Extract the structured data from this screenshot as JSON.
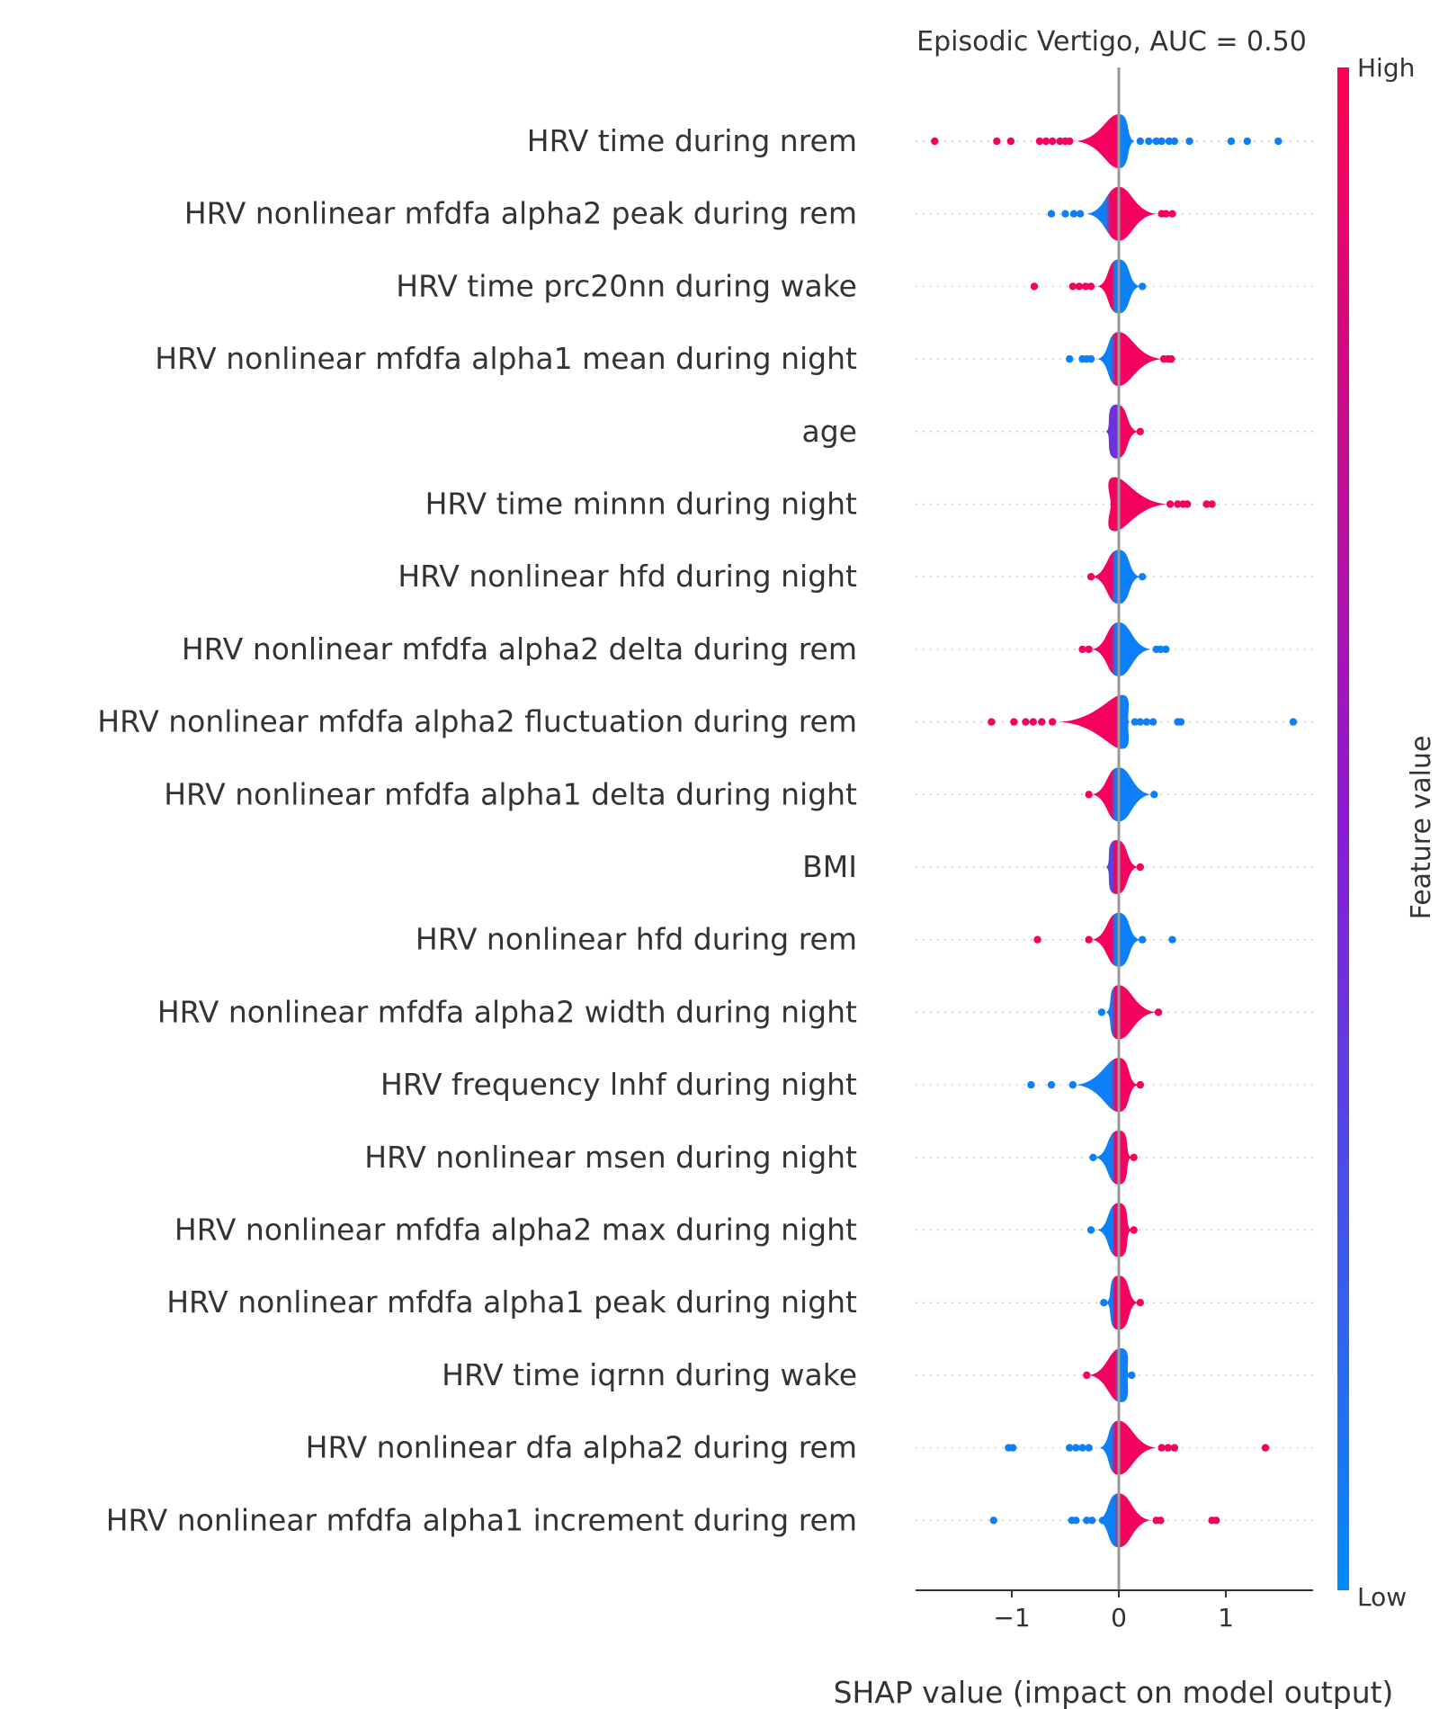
{
  "chart_data": {
    "type": "scatter",
    "subtype": "shap-beeswarm",
    "title": "Episodic Vertigo, AUC =  0.50",
    "xlabel": "SHAP value (impact on model output)",
    "ylabel": "",
    "xlim": [
      -1.88,
      1.82
    ],
    "x_ticks": [
      -1,
      0,
      1
    ],
    "x_tick_labels": [
      "−1",
      "0",
      "1"
    ],
    "grid": false,
    "colorbar": {
      "label": "Feature value",
      "high_label": "High",
      "low_label": "Low",
      "low_color": "#008bfb",
      "mid_color": "#8a1ad3",
      "high_color": "#ff0052"
    },
    "colors": {
      "low": "#008bfb",
      "high": "#ff0052",
      "zero_line": "#999999",
      "row_guide": "#cccccc",
      "text": "#333333"
    },
    "features": [
      {
        "name": "HRV time during nrem",
        "core": {
          "left": -0.4,
          "right": 0.15,
          "peak": 0.0,
          "split": 0.0,
          "left_value": 0.95,
          "right_value": 0.05
        },
        "points": [
          [
            -1.72,
            0.95
          ],
          [
            -1.14,
            0.95
          ],
          [
            -1.01,
            0.95
          ],
          [
            -0.74,
            0.95
          ],
          [
            -0.68,
            0.95
          ],
          [
            -0.62,
            0.95
          ],
          [
            -0.55,
            0.95
          ],
          [
            -0.5,
            0.95
          ],
          [
            -0.46,
            0.95
          ],
          [
            0.2,
            0.05
          ],
          [
            0.28,
            0.05
          ],
          [
            0.35,
            0.05
          ],
          [
            0.4,
            0.05
          ],
          [
            0.47,
            0.05
          ],
          [
            0.52,
            0.05
          ],
          [
            0.66,
            0.05
          ],
          [
            1.05,
            0.05
          ],
          [
            1.2,
            0.05
          ],
          [
            1.49,
            0.05
          ]
        ]
      },
      {
        "name": "HRV nonlinear mfdfa alpha2 peak during rem",
        "core": {
          "left": -0.3,
          "right": 0.35,
          "peak": 0.0,
          "split": -0.1,
          "left_value": 0.05,
          "right_value": 0.95
        },
        "points": [
          [
            -0.63,
            0.05
          ],
          [
            -0.5,
            0.05
          ],
          [
            -0.42,
            0.05
          ],
          [
            -0.36,
            0.05
          ],
          [
            0.4,
            0.95
          ],
          [
            0.44,
            0.95
          ],
          [
            0.5,
            0.95
          ]
        ]
      },
      {
        "name": "HRV time prc20nn during wake",
        "core": {
          "left": -0.2,
          "right": 0.2,
          "peak": 0.0,
          "split": -0.05,
          "left_value": 0.95,
          "right_value": 0.05
        },
        "points": [
          [
            -0.79,
            0.95
          ],
          [
            -0.43,
            0.95
          ],
          [
            -0.37,
            0.95
          ],
          [
            -0.31,
            0.95
          ],
          [
            -0.26,
            0.95
          ],
          [
            0.22,
            0.05
          ]
        ]
      },
      {
        "name": "HRV nonlinear mfdfa alpha1 mean during night",
        "core": {
          "left": -0.2,
          "right": 0.4,
          "peak": 0.0,
          "split": -0.05,
          "left_value": 0.05,
          "right_value": 0.95
        },
        "points": [
          [
            -0.46,
            0.05
          ],
          [
            -0.34,
            0.05
          ],
          [
            -0.3,
            0.05
          ],
          [
            -0.26,
            0.05
          ],
          [
            0.42,
            0.95
          ],
          [
            0.46,
            0.95
          ],
          [
            0.49,
            0.95
          ]
        ]
      },
      {
        "name": "age",
        "core": {
          "left": -0.12,
          "right": 0.18,
          "peak": -0.02,
          "split": 0.0,
          "left_value": 0.4,
          "right_value": 0.95
        },
        "points": [
          [
            0.2,
            0.95
          ]
        ]
      },
      {
        "name": "HRV time minnn during night",
        "core": {
          "left": -0.08,
          "right": 0.45,
          "peak": -0.04,
          "split": 0.0,
          "left_value": 0.95,
          "right_value": 0.95
        },
        "points": [
          [
            0.48,
            0.95
          ],
          [
            0.55,
            0.95
          ],
          [
            0.6,
            0.95
          ],
          [
            0.64,
            0.95
          ],
          [
            0.82,
            0.95
          ],
          [
            0.87,
            0.95
          ]
        ]
      },
      {
        "name": "HRV nonlinear hfd during night",
        "core": {
          "left": -0.25,
          "right": 0.2,
          "peak": 0.0,
          "split": -0.05,
          "left_value": 0.95,
          "right_value": 0.05
        },
        "points": [
          [
            -0.26,
            0.95
          ],
          [
            0.22,
            0.05
          ]
        ]
      },
      {
        "name": "HRV nonlinear mfdfa alpha2 delta during rem",
        "core": {
          "left": -0.25,
          "right": 0.3,
          "peak": 0.0,
          "split": -0.05,
          "left_value": 0.95,
          "right_value": 0.05
        },
        "points": [
          [
            -0.34,
            0.95
          ],
          [
            -0.28,
            0.95
          ],
          [
            0.35,
            0.05
          ],
          [
            0.39,
            0.05
          ],
          [
            0.44,
            0.05
          ]
        ]
      },
      {
        "name": "HRV nonlinear mfdfa alpha2 fluctuation during rem",
        "core": {
          "left": -0.55,
          "right": 0.1,
          "peak": 0.03,
          "split": 0.0,
          "left_value": 0.95,
          "right_value": 0.05
        },
        "points": [
          [
            -1.19,
            0.95
          ],
          [
            -0.98,
            0.95
          ],
          [
            -0.87,
            0.95
          ],
          [
            -0.8,
            0.95
          ],
          [
            -0.72,
            0.95
          ],
          [
            -0.62,
            0.95
          ],
          [
            0.15,
            0.05
          ],
          [
            0.2,
            0.05
          ],
          [
            0.26,
            0.05
          ],
          [
            0.32,
            0.05
          ],
          [
            0.55,
            0.05
          ],
          [
            0.58,
            0.05
          ],
          [
            1.63,
            0.05
          ]
        ]
      },
      {
        "name": "HRV nonlinear mfdfa alpha1 delta during night",
        "core": {
          "left": -0.25,
          "right": 0.3,
          "peak": 0.0,
          "split": -0.05,
          "left_value": 0.95,
          "right_value": 0.05
        },
        "points": [
          [
            -0.28,
            0.95
          ],
          [
            0.33,
            0.05
          ]
        ]
      },
      {
        "name": "BMI",
        "core": {
          "left": -0.12,
          "right": 0.18,
          "peak": -0.02,
          "split": -0.05,
          "left_value": 0.3,
          "right_value": 0.95
        },
        "points": [
          [
            0.2,
            0.95
          ]
        ]
      },
      {
        "name": "HRV nonlinear hfd during rem",
        "core": {
          "left": -0.25,
          "right": 0.2,
          "peak": 0.0,
          "split": -0.05,
          "left_value": 0.95,
          "right_value": 0.05
        },
        "points": [
          [
            -0.76,
            0.95
          ],
          [
            -0.28,
            0.95
          ],
          [
            0.22,
            0.05
          ],
          [
            0.5,
            0.05
          ]
        ]
      },
      {
        "name": "HRV nonlinear mfdfa alpha2 width during night",
        "core": {
          "left": -0.12,
          "right": 0.35,
          "peak": 0.0,
          "split": -0.05,
          "left_value": 0.05,
          "right_value": 0.95
        },
        "points": [
          [
            -0.16,
            0.05
          ],
          [
            0.37,
            0.95
          ]
        ]
      },
      {
        "name": "HRV frequency lnhf during night",
        "core": {
          "left": -0.4,
          "right": 0.18,
          "peak": 0.0,
          "split": -0.05,
          "left_value": 0.05,
          "right_value": 0.95
        },
        "points": [
          [
            -0.82,
            0.05
          ],
          [
            -0.63,
            0.05
          ],
          [
            -0.43,
            0.05
          ],
          [
            0.2,
            0.95
          ]
        ]
      },
      {
        "name": "HRV nonlinear msen during night",
        "core": {
          "left": -0.22,
          "right": 0.12,
          "peak": 0.0,
          "split": -0.05,
          "left_value": 0.05,
          "right_value": 0.95
        },
        "points": [
          [
            -0.24,
            0.05
          ],
          [
            0.14,
            0.95
          ]
        ]
      },
      {
        "name": "HRV nonlinear mfdfa alpha2 max during night",
        "core": {
          "left": -0.2,
          "right": 0.12,
          "peak": 0.0,
          "split": -0.05,
          "left_value": 0.05,
          "right_value": 0.95
        },
        "points": [
          [
            -0.26,
            0.05
          ],
          [
            0.14,
            0.95
          ]
        ]
      },
      {
        "name": "HRV nonlinear mfdfa alpha1 peak during night",
        "core": {
          "left": -0.12,
          "right": 0.18,
          "peak": 0.0,
          "split": -0.05,
          "left_value": 0.05,
          "right_value": 0.95
        },
        "points": [
          [
            -0.14,
            0.05
          ],
          [
            0.2,
            0.95
          ]
        ]
      },
      {
        "name": "HRV time iqrnn during wake",
        "core": {
          "left": -0.28,
          "right": 0.1,
          "peak": 0.02,
          "split": -0.02,
          "left_value": 0.95,
          "right_value": 0.05
        },
        "points": [
          [
            -0.3,
            0.95
          ],
          [
            0.12,
            0.05
          ]
        ]
      },
      {
        "name": "HRV nonlinear dfa alpha2 during rem",
        "core": {
          "left": -0.18,
          "right": 0.35,
          "peak": 0.0,
          "split": -0.05,
          "left_value": 0.05,
          "right_value": 0.95
        },
        "points": [
          [
            -1.03,
            0.05
          ],
          [
            -0.99,
            0.05
          ],
          [
            -0.46,
            0.05
          ],
          [
            -0.4,
            0.05
          ],
          [
            -0.34,
            0.05
          ],
          [
            -0.28,
            0.05
          ],
          [
            0.4,
            0.95
          ],
          [
            0.46,
            0.95
          ],
          [
            0.52,
            0.95
          ],
          [
            1.37,
            0.95
          ]
        ]
      },
      {
        "name": "HRV nonlinear mfdfa alpha1 increment during rem",
        "core": {
          "left": -0.2,
          "right": 0.3,
          "peak": 0.0,
          "split": -0.02,
          "left_value": 0.05,
          "right_value": 0.95
        },
        "points": [
          [
            -1.17,
            0.05
          ],
          [
            -0.44,
            0.05
          ],
          [
            -0.4,
            0.05
          ],
          [
            -0.3,
            0.05
          ],
          [
            -0.25,
            0.05
          ],
          [
            -0.15,
            0.05
          ],
          [
            0.35,
            0.95
          ],
          [
            0.39,
            0.95
          ],
          [
            0.87,
            0.95
          ],
          [
            0.91,
            0.95
          ]
        ]
      }
    ]
  }
}
